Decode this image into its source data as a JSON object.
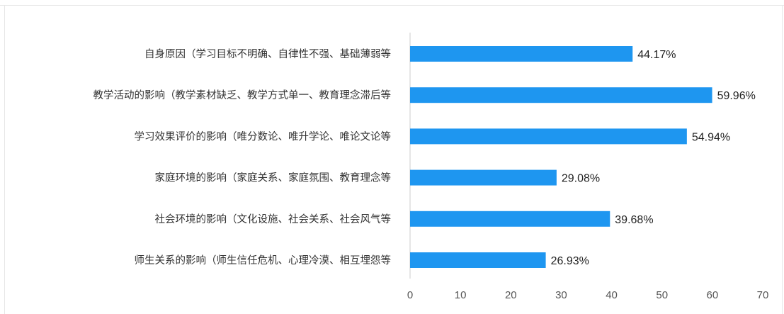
{
  "chart_data": {
    "type": "bar",
    "orientation": "horizontal",
    "categories": [
      "自身原因（学习目标不明确、自律性不强、基础薄弱等",
      "教学活动的影响（教学素材缺乏、教学方式单一、教育理念滞后等",
      "学习效果评价的影响（唯分数论、唯升学论、唯论文论等",
      "家庭环境的影响（家庭关系、家庭氛围、教育理念等",
      "社会环境的影响（文化设施、社会关系、社会风气等",
      "师生关系的影响（师生信任危机、心理冷漠、相互埋怨等"
    ],
    "values": [
      44.17,
      59.96,
      54.94,
      29.08,
      39.68,
      26.93
    ],
    "value_labels": [
      "44.17%",
      "59.96%",
      "54.94%",
      "29.08%",
      "39.68%",
      "26.93%"
    ],
    "xlim": [
      0,
      70
    ],
    "xticks": [
      0,
      10,
      20,
      30,
      40,
      50,
      60,
      70
    ],
    "title": "",
    "xlabel": "",
    "ylabel": "",
    "grid": false,
    "bar_color": "#1e96f0"
  }
}
